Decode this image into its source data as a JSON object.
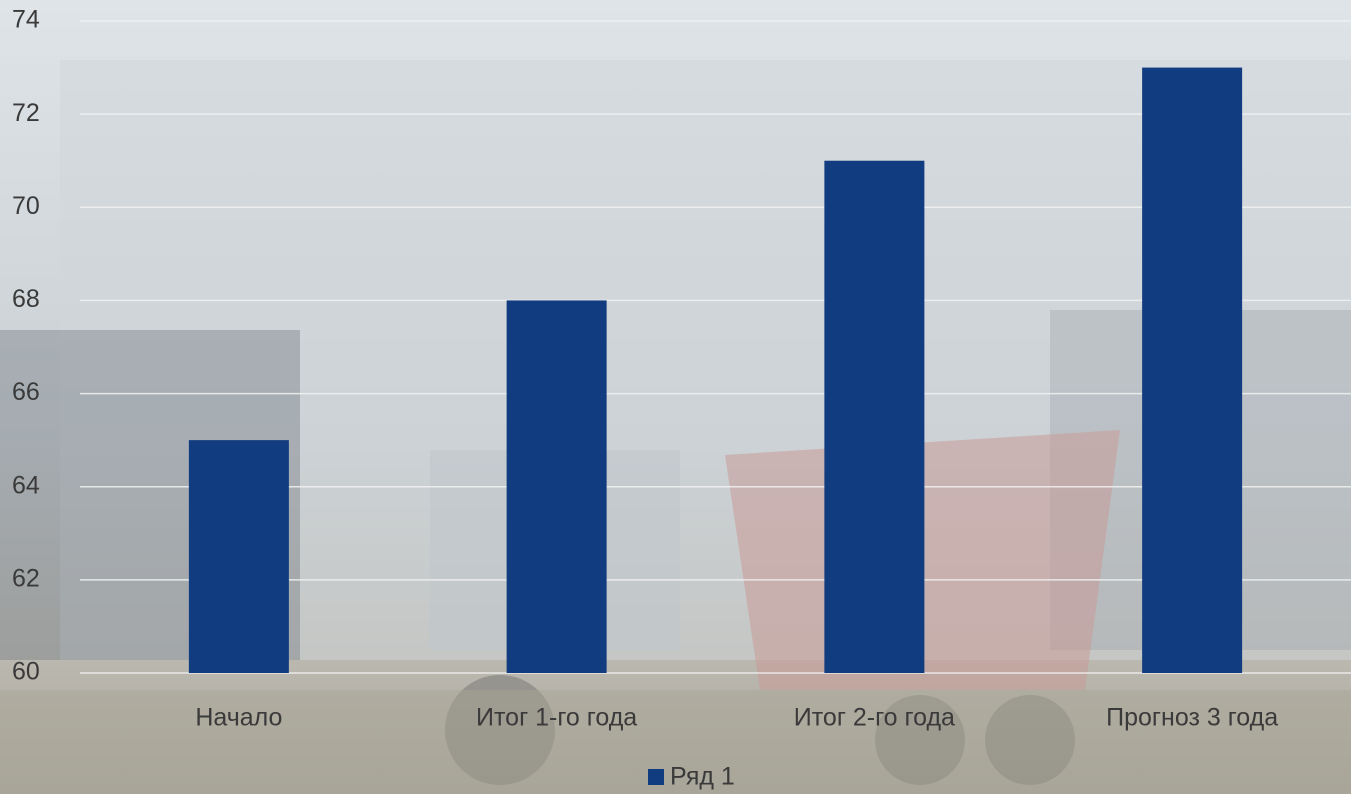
{
  "chart_data": {
    "type": "bar",
    "categories": [
      "Начало",
      "Итог 1-го года",
      "Итог 2-го года",
      "Прогноз 3 года"
    ],
    "series": [
      {
        "name": "Ряд 1",
        "color": "#123c80",
        "values": [
          65,
          68,
          71,
          73
        ]
      }
    ],
    "ylim": [
      60,
      74
    ],
    "yticks": [
      60,
      62,
      64,
      66,
      68,
      70,
      72,
      74
    ],
    "grid": true,
    "legend": "bottom"
  }
}
